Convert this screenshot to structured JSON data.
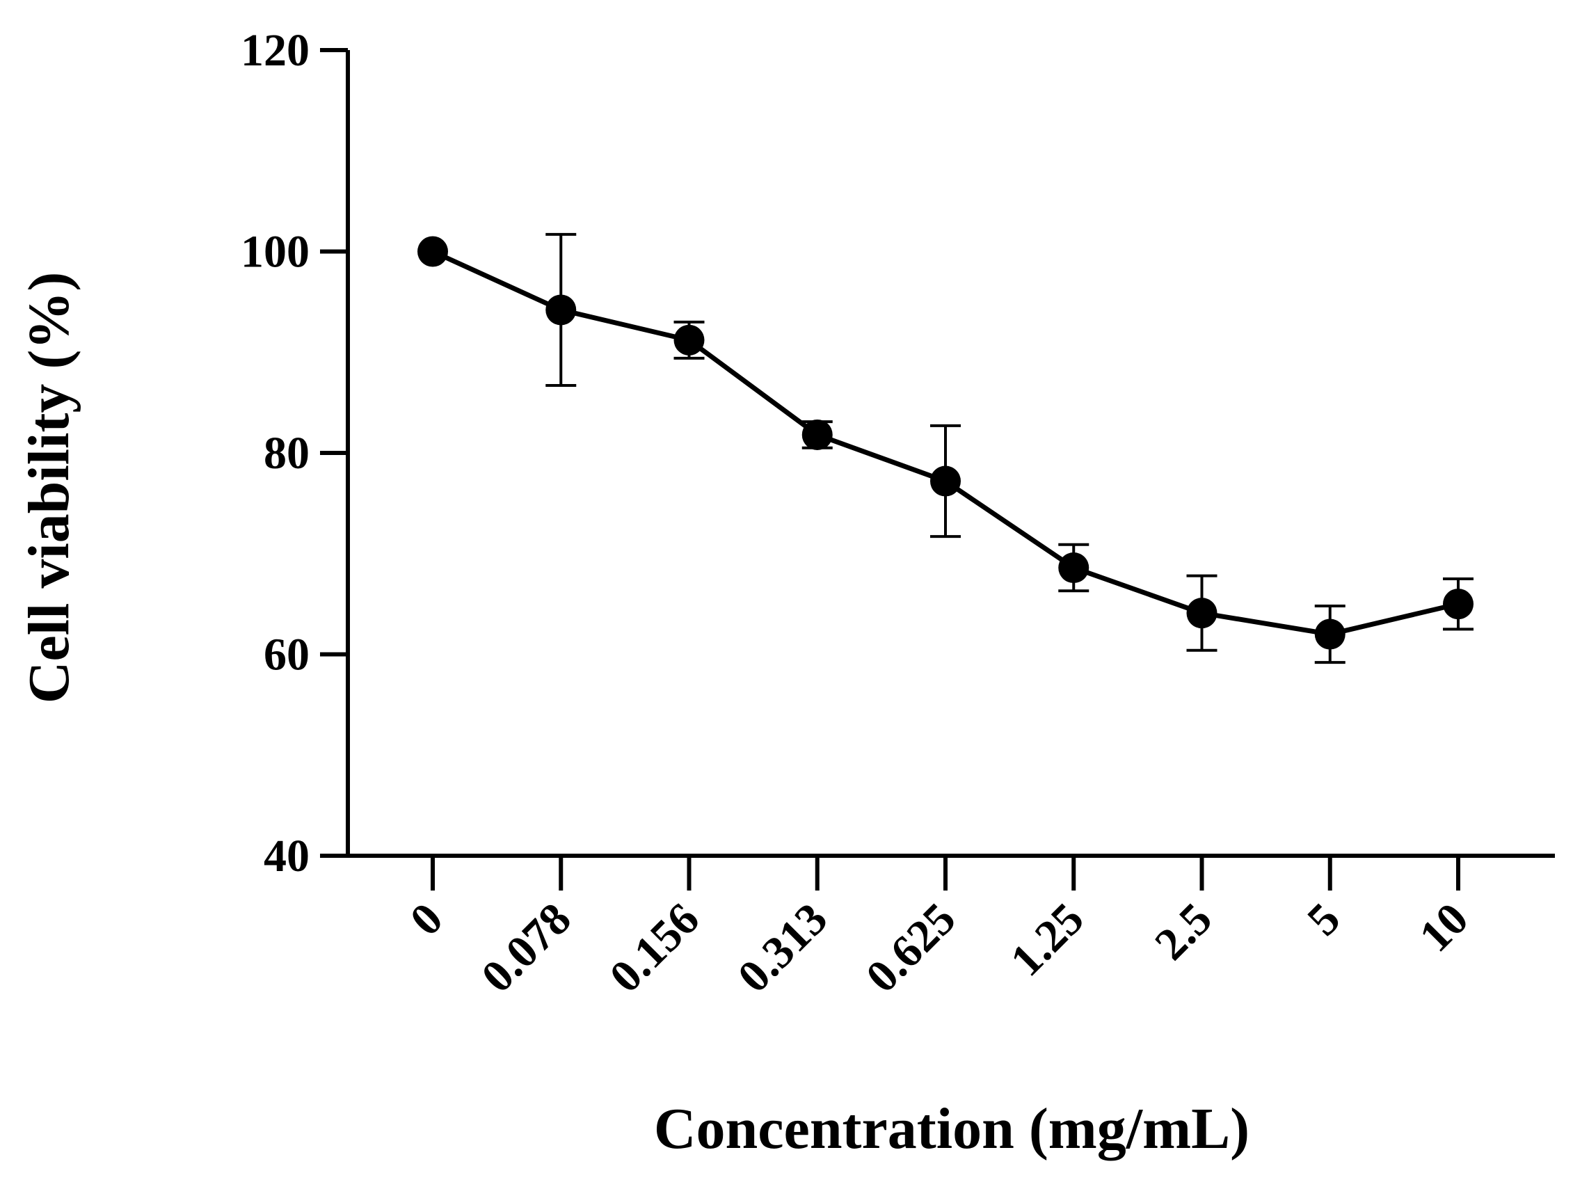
{
  "chart_data": {
    "type": "line",
    "title": "",
    "xlabel": "Concentration (mg/mL)",
    "ylabel": "Cell viability (%)",
    "categories": [
      "0",
      "0.078",
      "0.156",
      "0.313",
      "0.625",
      "1.25",
      "2.5",
      "5",
      "10"
    ],
    "series": [
      {
        "name": "Cell viability",
        "values": [
          100,
          94.2,
          91.2,
          81.8,
          77.2,
          68.6,
          64.1,
          62.0,
          65.0
        ],
        "error": [
          0,
          7.5,
          1.8,
          1.3,
          5.5,
          2.3,
          3.7,
          2.8,
          2.5
        ]
      }
    ],
    "ylim": [
      40,
      120
    ],
    "yticks": [
      "40",
      "60",
      "80",
      "100",
      "120"
    ],
    "grid": false,
    "legend": "none"
  }
}
